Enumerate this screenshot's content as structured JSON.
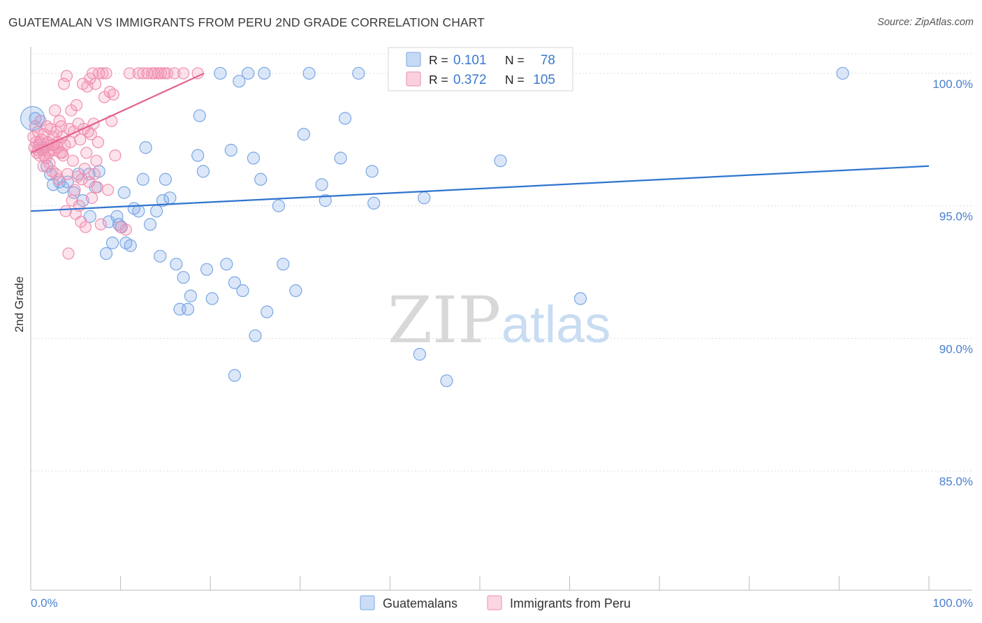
{
  "title": "GUATEMALAN VS IMMIGRANTS FROM PERU 2ND GRADE CORRELATION CHART",
  "source": "Source: ZipAtlas.com",
  "watermark": {
    "zip": "ZIP",
    "atlas": "atlas"
  },
  "legend_box": {
    "rows": [
      {
        "r_label": "R =",
        "r_value": "0.101",
        "n_label": "N =",
        "n_value": "78",
        "color": "#5b8fd9"
      },
      {
        "r_label": "R =",
        "r_value": "0.372",
        "n_label": "N =",
        "n_value": "105",
        "color": "#e97aa0"
      }
    ]
  },
  "colors": {
    "blue_fill": "rgba(126,170,232,0.28)",
    "blue_stroke": "#7aa7e3",
    "blue_line": "#2f74cf",
    "pink_fill": "rgba(244,150,182,0.28)",
    "pink_stroke": "#ef8fb0",
    "pink_line": "#e2638f",
    "tick_text": "#4a7fcf",
    "grid": "#dddddd"
  },
  "chart_data": {
    "type": "scatter",
    "title": "GUATEMALAN VS IMMIGRANTS FROM PERU 2ND GRADE CORRELATION CHART",
    "xlabel": "",
    "ylabel": "2nd Grade",
    "xlim": [
      0,
      100
    ],
    "ylim": [
      80.5,
      101
    ],
    "x_tick_labels": [
      "0.0%",
      "100.0%"
    ],
    "y_ticks": [
      85,
      90,
      95,
      100
    ],
    "y_tick_labels": [
      "85.0%",
      "90.0%",
      "95.0%",
      "100.0%"
    ],
    "grid": true,
    "legend_position": "bottom",
    "series": [
      {
        "name": "Guatemalans",
        "color": "#7aa7e3",
        "trend": {
          "x": [
            0,
            100
          ],
          "y": [
            94.8,
            96.5
          ]
        },
        "points": [
          [
            0.5,
            98.3
          ],
          [
            1.2,
            97.2
          ],
          [
            1.8,
            96.5
          ],
          [
            2.2,
            96.2
          ],
          [
            2.5,
            95.8
          ],
          [
            3.2,
            95.9
          ],
          [
            3.6,
            95.7
          ],
          [
            4.1,
            95.9
          ],
          [
            4.8,
            95.5
          ],
          [
            5.3,
            96.2
          ],
          [
            5.8,
            95.2
          ],
          [
            6.5,
            96.2
          ],
          [
            6.6,
            94.6
          ],
          [
            7.2,
            95.7
          ],
          [
            7.6,
            96.3
          ],
          [
            8.4,
            93.2
          ],
          [
            8.7,
            94.4
          ],
          [
            9.1,
            93.6
          ],
          [
            9.6,
            94.6
          ],
          [
            9.8,
            94.3
          ],
          [
            10.4,
            95.5
          ],
          [
            10.6,
            93.6
          ],
          [
            11.1,
            93.5
          ],
          [
            11.5,
            94.9
          ],
          [
            12.0,
            94.8
          ],
          [
            12.5,
            96.0
          ],
          [
            12.8,
            97.2
          ],
          [
            13.3,
            94.3
          ],
          [
            14.0,
            94.8
          ],
          [
            14.4,
            93.1
          ],
          [
            14.7,
            95.2
          ],
          [
            15.0,
            96.0
          ],
          [
            15.5,
            95.3
          ],
          [
            16.2,
            92.8
          ],
          [
            16.6,
            91.1
          ],
          [
            17.0,
            92.3
          ],
          [
            17.5,
            91.1
          ],
          [
            17.8,
            91.6
          ],
          [
            18.6,
            96.9
          ],
          [
            18.8,
            98.4
          ],
          [
            19.2,
            96.3
          ],
          [
            19.6,
            92.6
          ],
          [
            20.2,
            91.5
          ],
          [
            21.1,
            100.0
          ],
          [
            21.8,
            92.8
          ],
          [
            22.3,
            97.1
          ],
          [
            22.7,
            92.1
          ],
          [
            23.2,
            99.7
          ],
          [
            23.6,
            91.8
          ],
          [
            24.2,
            100.0
          ],
          [
            24.8,
            96.8
          ],
          [
            25.0,
            90.1
          ],
          [
            25.6,
            96.0
          ],
          [
            26.0,
            100.0
          ],
          [
            26.3,
            91.0
          ],
          [
            27.6,
            95.0
          ],
          [
            28.1,
            92.8
          ],
          [
            29.5,
            91.8
          ],
          [
            30.4,
            97.7
          ],
          [
            31.0,
            100.0
          ],
          [
            32.4,
            95.8
          ],
          [
            32.8,
            95.2
          ],
          [
            34.5,
            96.8
          ],
          [
            35.0,
            98.3
          ],
          [
            36.5,
            100.0
          ],
          [
            38.0,
            96.3
          ],
          [
            38.2,
            95.1
          ],
          [
            43.3,
            89.4
          ],
          [
            43.8,
            95.3
          ],
          [
            46.3,
            88.4
          ],
          [
            52.3,
            96.7
          ],
          [
            55.0,
            100.0
          ],
          [
            56.5,
            100.0
          ],
          [
            57.2,
            100.0
          ],
          [
            61.2,
            91.5
          ],
          [
            90.4,
            100.0
          ],
          [
            22.7,
            88.6
          ],
          [
            10.1,
            94.2
          ]
        ]
      },
      {
        "name": "Immigrants from Peru",
        "color": "#ef8fb0",
        "trend": {
          "x": [
            0,
            19.3
          ],
          "y": [
            97.0,
            100.0
          ]
        },
        "points": [
          [
            0.3,
            97.6
          ],
          [
            0.4,
            97.2
          ],
          [
            0.5,
            98.0
          ],
          [
            0.6,
            97.4
          ],
          [
            0.7,
            97.0
          ],
          [
            0.8,
            97.8
          ],
          [
            0.9,
            97.3
          ],
          [
            1.0,
            96.9
          ],
          [
            1.1,
            98.2
          ],
          [
            1.2,
            97.5
          ],
          [
            1.3,
            97.1
          ],
          [
            1.4,
            96.5
          ],
          [
            1.5,
            97.7
          ],
          [
            1.6,
            97.2
          ],
          [
            1.7,
            96.8
          ],
          [
            1.8,
            98.0
          ],
          [
            1.9,
            97.4
          ],
          [
            2.0,
            97.0
          ],
          [
            2.1,
            96.6
          ],
          [
            2.2,
            97.9
          ],
          [
            2.3,
            97.3
          ],
          [
            2.4,
            96.3
          ],
          [
            2.5,
            97.6
          ],
          [
            2.6,
            97.1
          ],
          [
            2.7,
            98.6
          ],
          [
            2.8,
            96.2
          ],
          [
            2.9,
            97.8
          ],
          [
            3.0,
            97.4
          ],
          [
            3.1,
            96.0
          ],
          [
            3.2,
            98.2
          ],
          [
            3.3,
            97.0
          ],
          [
            3.4,
            98.0
          ],
          [
            3.5,
            97.6
          ],
          [
            3.6,
            96.9
          ],
          [
            3.7,
            99.6
          ],
          [
            3.8,
            97.3
          ],
          [
            3.9,
            94.8
          ],
          [
            4.0,
            99.9
          ],
          [
            4.1,
            96.2
          ],
          [
            4.2,
            93.2
          ],
          [
            4.3,
            97.9
          ],
          [
            4.4,
            97.4
          ],
          [
            4.5,
            98.6
          ],
          [
            4.6,
            95.2
          ],
          [
            4.7,
            96.7
          ],
          [
            4.8,
            97.8
          ],
          [
            4.9,
            95.6
          ],
          [
            5.0,
            94.7
          ],
          [
            5.1,
            98.8
          ],
          [
            5.2,
            96.1
          ],
          [
            5.3,
            98.1
          ],
          [
            5.4,
            95.0
          ],
          [
            5.5,
            97.5
          ],
          [
            5.6,
            94.4
          ],
          [
            5.7,
            96.0
          ],
          [
            5.8,
            99.6
          ],
          [
            5.9,
            97.9
          ],
          [
            6.0,
            96.4
          ],
          [
            6.1,
            94.2
          ],
          [
            6.2,
            97.0
          ],
          [
            6.3,
            99.5
          ],
          [
            6.4,
            97.8
          ],
          [
            6.5,
            95.9
          ],
          [
            6.6,
            99.8
          ],
          [
            6.7,
            97.7
          ],
          [
            6.8,
            95.3
          ],
          [
            6.9,
            100.0
          ],
          [
            7.0,
            98.1
          ],
          [
            7.1,
            96.2
          ],
          [
            7.2,
            99.6
          ],
          [
            7.3,
            96.7
          ],
          [
            7.4,
            95.7
          ],
          [
            7.5,
            97.4
          ],
          [
            7.6,
            100.0
          ],
          [
            7.8,
            94.3
          ],
          [
            8.0,
            100.0
          ],
          [
            8.2,
            99.1
          ],
          [
            8.4,
            100.0
          ],
          [
            8.6,
            95.6
          ],
          [
            8.8,
            99.3
          ],
          [
            9.0,
            98.2
          ],
          [
            9.2,
            99.2
          ],
          [
            9.4,
            96.9
          ],
          [
            10.0,
            94.2
          ],
          [
            10.6,
            94.1
          ],
          [
            11.0,
            100.0
          ],
          [
            12.0,
            100.0
          ],
          [
            12.5,
            100.0
          ],
          [
            13.0,
            100.0
          ],
          [
            13.5,
            100.0
          ],
          [
            13.8,
            100.0
          ],
          [
            14.2,
            100.0
          ],
          [
            14.5,
            100.0
          ],
          [
            14.9,
            100.0
          ],
          [
            15.2,
            100.0
          ],
          [
            16.0,
            100.0
          ],
          [
            17.0,
            100.0
          ],
          [
            18.6,
            100.0
          ],
          [
            2.0,
            97.1
          ],
          [
            1.0,
            97.4
          ],
          [
            3.0,
            97.2
          ],
          [
            1.5,
            96.9
          ],
          [
            2.5,
            97.3
          ],
          [
            0.8,
            97.1
          ],
          [
            3.5,
            97.0
          ]
        ]
      }
    ]
  },
  "legend": {
    "items": [
      {
        "label": "Guatemalans",
        "color": "#7aa7e3"
      },
      {
        "label": "Immigrants from Peru",
        "color": "#ef8fb0"
      }
    ]
  }
}
